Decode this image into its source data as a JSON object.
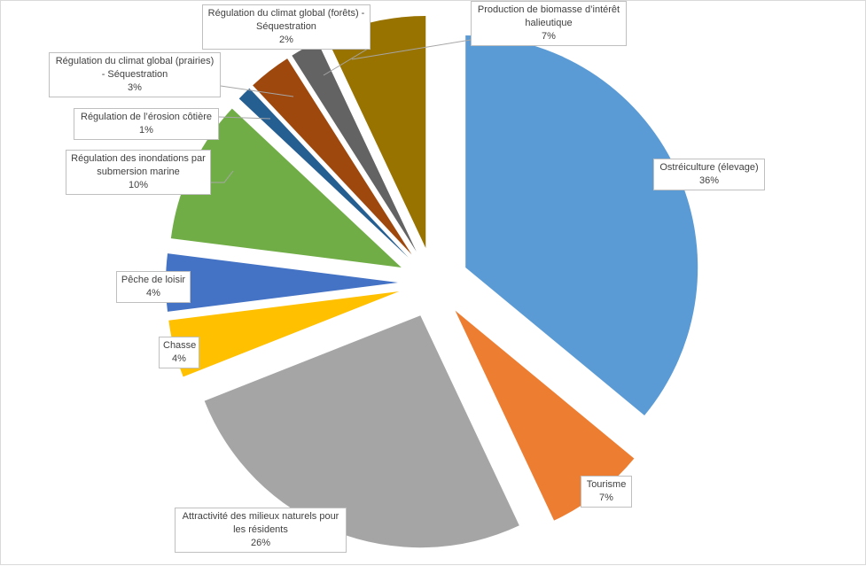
{
  "chart_data": {
    "type": "pie",
    "exploded": true,
    "slices": [
      {
        "label": "Ostréiculture (élevage)",
        "value": 36,
        "value_label": "36%",
        "color": "#5b9bd5"
      },
      {
        "label": "Tourisme",
        "value": 7,
        "value_label": "7%",
        "color": "#ed7d31"
      },
      {
        "label": "Attractivité des milieux naturels pour les résidents",
        "value": 26,
        "value_label": "26%",
        "color": "#a5a5a5"
      },
      {
        "label": "Chasse",
        "value": 4,
        "value_label": "4%",
        "color": "#ffc000"
      },
      {
        "label": "Pêche de loisir",
        "value": 4,
        "value_label": "4%",
        "color": "#4472c4"
      },
      {
        "label": "Régulation des inondations par submersion marine",
        "value": 10,
        "value_label": "10%",
        "color": "#70ad47"
      },
      {
        "label": "Régulation de l’érosion côtière",
        "value": 1,
        "value_label": "1%",
        "color": "#255e91"
      },
      {
        "label": "Régulation du climat global (prairies) - Séquestration",
        "value": 3,
        "value_label": "3%",
        "color": "#9e480e"
      },
      {
        "label": "Régulation du climat global (forêts) - Séquestration",
        "value": 2,
        "value_label": "2%",
        "color": "#636363"
      },
      {
        "label": "Production de biomasse d’intérêt halieutique",
        "value": 7,
        "value_label": "7%",
        "color": "#997300"
      }
    ]
  }
}
